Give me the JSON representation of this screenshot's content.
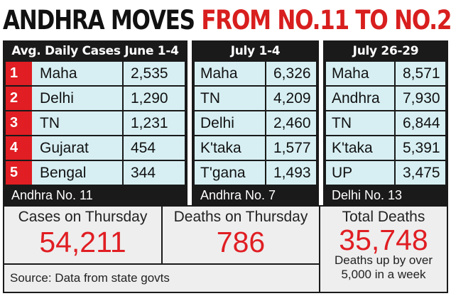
{
  "headline": {
    "part1": "ANDHRA MOVES",
    "part2": "FROM NO.11 TO NO.2"
  },
  "panels": [
    {
      "header": "Avg. Daily Cases June 1-4",
      "rows": [
        {
          "rank": "1",
          "state": "Maha",
          "value": "2,535"
        },
        {
          "rank": "2",
          "state": "Delhi",
          "value": "1,290"
        },
        {
          "rank": "3",
          "state": "TN",
          "value": "1,231"
        },
        {
          "rank": "4",
          "state": "Gujarat",
          "value": "454"
        },
        {
          "rank": "5",
          "state": "Bengal",
          "value": "344"
        }
      ],
      "footer": "Andhra No. 11"
    },
    {
      "header": "July 1-4",
      "rows": [
        {
          "state": "Maha",
          "value": "6,326"
        },
        {
          "state": "TN",
          "value": "4,209"
        },
        {
          "state": "Delhi",
          "value": "2,460"
        },
        {
          "state": "K'taka",
          "value": "1,577"
        },
        {
          "state": "T'gana",
          "value": "1,493"
        }
      ],
      "footer": "Andhra No. 7"
    },
    {
      "header": "July 26-29",
      "rows": [
        {
          "state": "Maha",
          "value": "8,571"
        },
        {
          "state": "Andhra",
          "value": "7,930"
        },
        {
          "state": "TN",
          "value": "6,844"
        },
        {
          "state": "K'taka",
          "value": "5,391"
        },
        {
          "state": "UP",
          "value": "3,475"
        }
      ],
      "footer": "Delhi No. 13"
    }
  ],
  "stats": {
    "cases": {
      "label": "Cases on Thursday",
      "value": "54,211"
    },
    "deaths": {
      "label": "Deaths on Thursday",
      "value": "786"
    },
    "total": {
      "label": "Total Deaths",
      "value": "35,748",
      "note_line1": "Deaths up by over",
      "note_line2": "5,000 in a week"
    },
    "source": "Source: Data from state govts"
  },
  "colors": {
    "accent_red": "#e01e23",
    "headline_red": "#d81e1e",
    "row_bg": "#d7eff3",
    "frame": "#1a1a1a",
    "stat_bg": "#eeeeee"
  }
}
